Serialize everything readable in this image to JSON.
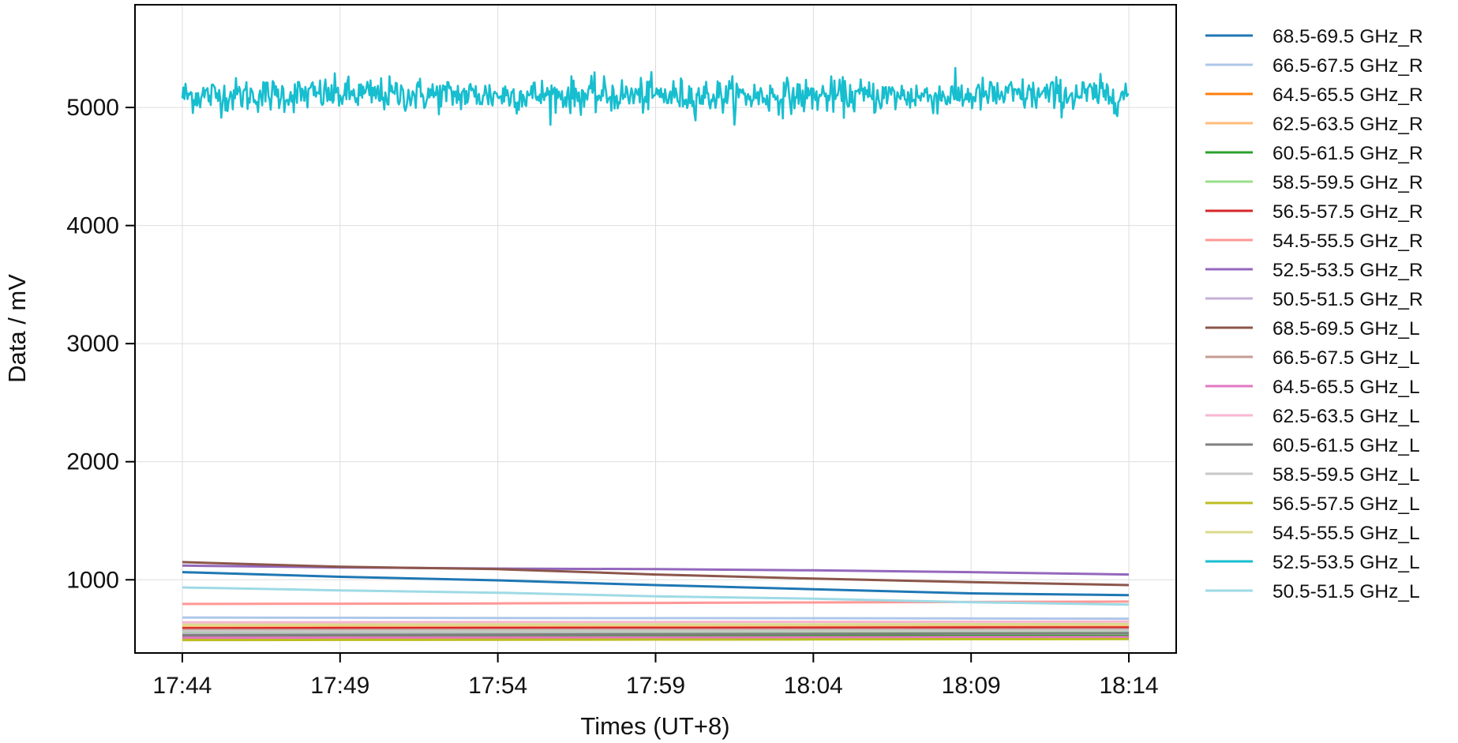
{
  "chart_data": {
    "type": "line",
    "xlabel": "Times (UT+8)",
    "ylabel": "Data / mV",
    "x_ticks": [
      "17:44",
      "17:49",
      "17:54",
      "17:59",
      "18:04",
      "18:09",
      "18:14"
    ],
    "y_ticks": [
      1000,
      2000,
      3000,
      4000,
      5000
    ],
    "xlim": [
      "17:42:30",
      "18:15:30"
    ],
    "ylim": [
      380,
      5870
    ],
    "grid": true,
    "legend_position": "outside-right",
    "series": [
      {
        "name": "68.5-69.5 GHz_R",
        "color": "#1f77b4",
        "x": [
          "17:44",
          "17:49",
          "17:54",
          "17:59",
          "18:04",
          "18:09",
          "18:14"
        ],
        "values": [
          1065,
          1025,
          995,
          955,
          920,
          885,
          870
        ]
      },
      {
        "name": "66.5-67.5 GHz_R",
        "color": "#aec7e8",
        "x": [
          "17:44",
          "17:49",
          "17:54",
          "17:59",
          "18:04",
          "18:09",
          "18:14"
        ],
        "values": [
          680,
          678,
          676,
          675,
          674,
          672,
          670
        ]
      },
      {
        "name": "64.5-65.5 GHz_R",
        "color": "#ff7f0e",
        "x": [
          "17:44",
          "17:49",
          "17:54",
          "17:59",
          "18:04",
          "18:09",
          "18:14"
        ],
        "values": [
          500,
          501,
          502,
          503,
          504,
          505,
          506
        ]
      },
      {
        "name": "62.5-63.5 GHz_R",
        "color": "#ffbb78",
        "x": [
          "17:44",
          "17:49",
          "17:54",
          "17:59",
          "18:04",
          "18:09",
          "18:14"
        ],
        "values": [
          600,
          601,
          602,
          602,
          603,
          604,
          605
        ]
      },
      {
        "name": "60.5-61.5 GHz_R",
        "color": "#2ca02c",
        "x": [
          "17:44",
          "17:49",
          "17:54",
          "17:59",
          "18:04",
          "18:09",
          "18:14"
        ],
        "values": [
          520,
          521,
          522,
          523,
          524,
          525,
          526
        ]
      },
      {
        "name": "58.5-59.5 GHz_R",
        "color": "#98df8a",
        "x": [
          "17:44",
          "17:49",
          "17:54",
          "17:59",
          "18:04",
          "18:09",
          "18:14"
        ],
        "values": [
          555,
          556,
          557,
          558,
          559,
          560,
          561
        ]
      },
      {
        "name": "56.5-57.5 GHz_R",
        "color": "#d62728",
        "x": [
          "17:44",
          "17:49",
          "17:54",
          "17:59",
          "18:04",
          "18:09",
          "18:14"
        ],
        "values": [
          590,
          591,
          592,
          593,
          594,
          595,
          596
        ]
      },
      {
        "name": "54.5-55.5 GHz_R",
        "color": "#ff9896",
        "x": [
          "17:44",
          "17:49",
          "17:54",
          "17:59",
          "18:04",
          "18:09",
          "18:14"
        ],
        "values": [
          795,
          797,
          800,
          804,
          808,
          812,
          815
        ]
      },
      {
        "name": "52.5-53.5 GHz_R",
        "color": "#9467bd",
        "x": [
          "17:44",
          "17:49",
          "17:54",
          "17:59",
          "18:04",
          "18:09",
          "18:14"
        ],
        "values": [
          1120,
          1105,
          1095,
          1090,
          1080,
          1065,
          1045
        ]
      },
      {
        "name": "50.5-51.5 GHz_R",
        "color": "#c5b0d5",
        "x": [
          "17:44",
          "17:49",
          "17:54",
          "17:59",
          "18:04",
          "18:09",
          "18:14"
        ],
        "values": [
          540,
          541,
          542,
          543,
          544,
          545,
          546
        ]
      },
      {
        "name": "68.5-69.5 GHz_L",
        "color": "#8c564b",
        "x": [
          "17:44",
          "17:49",
          "17:54",
          "17:59",
          "18:04",
          "18:09",
          "18:14"
        ],
        "values": [
          1150,
          1110,
          1090,
          1045,
          1010,
          980,
          955
        ]
      },
      {
        "name": "66.5-67.5 GHz_L",
        "color": "#c49c94",
        "x": [
          "17:44",
          "17:49",
          "17:54",
          "17:59",
          "18:04",
          "18:09",
          "18:14"
        ],
        "values": [
          575,
          576,
          577,
          578,
          579,
          580,
          581
        ]
      },
      {
        "name": "64.5-65.5 GHz_L",
        "color": "#e377c2",
        "x": [
          "17:44",
          "17:49",
          "17:54",
          "17:59",
          "18:04",
          "18:09",
          "18:14"
        ],
        "values": [
          510,
          511,
          512,
          513,
          514,
          515,
          516
        ]
      },
      {
        "name": "62.5-63.5 GHz_L",
        "color": "#f7b6d2",
        "x": [
          "17:44",
          "17:49",
          "17:54",
          "17:59",
          "18:04",
          "18:09",
          "18:14"
        ],
        "values": [
          640,
          641,
          642,
          643,
          644,
          645,
          646
        ]
      },
      {
        "name": "60.5-61.5 GHz_L",
        "color": "#7f7f7f",
        "x": [
          "17:44",
          "17:49",
          "17:54",
          "17:59",
          "18:04",
          "18:09",
          "18:14"
        ],
        "values": [
          530,
          533,
          536,
          539,
          542,
          545,
          548
        ]
      },
      {
        "name": "58.5-59.5 GHz_L",
        "color": "#c7c7c7",
        "x": [
          "17:44",
          "17:49",
          "17:54",
          "17:59",
          "18:04",
          "18:09",
          "18:14"
        ],
        "values": [
          565,
          566,
          567,
          568,
          569,
          570,
          571
        ]
      },
      {
        "name": "56.5-57.5 GHz_L",
        "color": "#bcbd22",
        "x": [
          "17:44",
          "17:49",
          "17:54",
          "17:59",
          "18:04",
          "18:09",
          "18:14"
        ],
        "values": [
          490,
          491,
          492,
          494,
          495,
          497,
          498
        ]
      },
      {
        "name": "54.5-55.5 GHz_L",
        "color": "#dbdb8d",
        "x": [
          "17:44",
          "17:49",
          "17:54",
          "17:59",
          "18:04",
          "18:09",
          "18:14"
        ],
        "values": [
          620,
          621,
          622,
          622,
          623,
          624,
          625
        ]
      },
      {
        "name": "52.5-53.5 GHz_L",
        "color": "#17becf",
        "x": [
          "17:44",
          "17:49",
          "17:54",
          "17:59",
          "18:04",
          "18:09",
          "18:14"
        ],
        "values": [
          5100,
          5110,
          5105,
          5100,
          5095,
          5100,
          5110
        ],
        "noise_amplitude": 160
      },
      {
        "name": "50.5-51.5 GHz_L",
        "color": "#9edae5",
        "x": [
          "17:44",
          "17:49",
          "17:54",
          "17:59",
          "18:04",
          "18:09",
          "18:14"
        ],
        "values": [
          935,
          910,
          890,
          860,
          840,
          810,
          790
        ]
      }
    ]
  }
}
